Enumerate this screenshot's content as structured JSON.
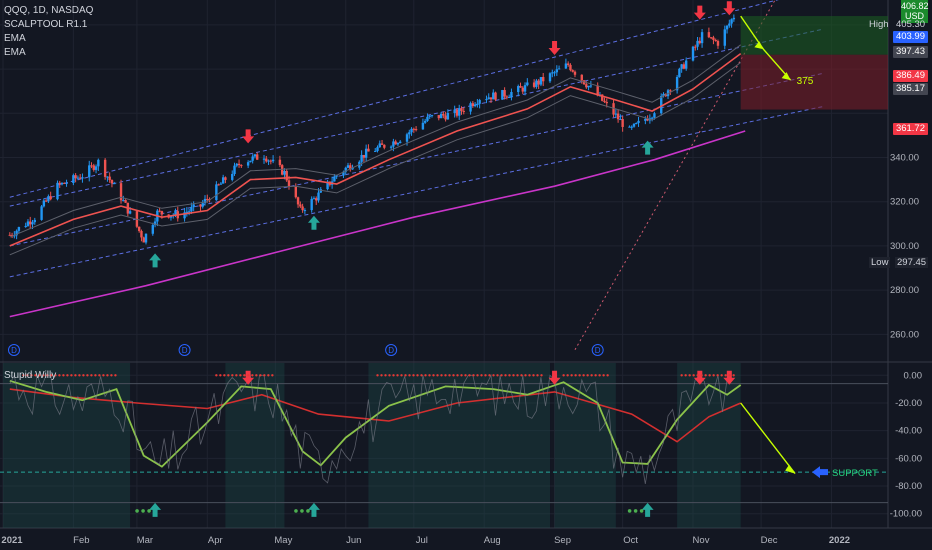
{
  "legend": {
    "symbol": "QQQ, 1D, NASDAQ",
    "indicator1": "SCALPTOOL R1.1",
    "indicator2": "EMA",
    "indicator3": "EMA",
    "oscillator": "Stupid Willy"
  },
  "price_axis": {
    "ticks": [
      "260.00",
      "280.00",
      "300.00",
      "320.00",
      "340.00"
    ],
    "currency": "USD",
    "top_value": "406.82",
    "high_label": "High",
    "high_value": "405.30",
    "low_label": "Low",
    "low_value": "297.45",
    "tags": [
      {
        "value": "403.99",
        "color": "#2962ff"
      },
      {
        "value": "397.43",
        "color": "#434651"
      },
      {
        "value": "386.49",
        "color": "#f23645"
      },
      {
        "value": "385.17",
        "color": "#434651"
      },
      {
        "value": "361.72",
        "color": "#f23645"
      }
    ]
  },
  "osc_axis": {
    "ticks": [
      "0.00",
      "-20.00",
      "-40.00",
      "-60.00",
      "-80.00",
      "-100.00"
    ]
  },
  "time_axis": {
    "labels": [
      "2021",
      "Feb",
      "Mar",
      "Apr",
      "May",
      "Jun",
      "Jul",
      "Aug",
      "Sep",
      "Oct",
      "Nov",
      "Dec",
      "2022"
    ]
  },
  "annotations": {
    "target_label": "375",
    "support_label": "SUPPORT",
    "dividend_marker": "D"
  },
  "colors": {
    "background": "#131722",
    "grid": "#1f2330",
    "up": "#2196f3",
    "down": "#ef5350",
    "ema_fast": "#ef5350",
    "ema_slow": "#c935c9",
    "arrow_up": "#26a69a",
    "arrow_down": "#f23645",
    "projection": "#c6ff00",
    "osc_fast": "#8bc34a",
    "osc_slow": "#d32f2f"
  },
  "chart_data": {
    "type": "candlestick",
    "title": "QQQ, 1D, NASDAQ",
    "price_ylim": [
      252,
      409
    ],
    "osc_ylim": [
      -106,
      6
    ],
    "price_path": [
      {
        "x": "2021-01-04",
        "y": 305
      },
      {
        "x": "2021-01-15",
        "y": 313
      },
      {
        "x": "2021-01-25",
        "y": 327
      },
      {
        "x": "2021-02-05",
        "y": 332
      },
      {
        "x": "2021-02-12",
        "y": 338
      },
      {
        "x": "2021-02-22",
        "y": 322
      },
      {
        "x": "2021-03-04",
        "y": 303
      },
      {
        "x": "2021-03-10",
        "y": 315
      },
      {
        "x": "2021-03-19",
        "y": 314
      },
      {
        "x": "2021-03-29",
        "y": 318
      },
      {
        "x": "2021-04-06",
        "y": 327
      },
      {
        "x": "2021-04-16",
        "y": 338
      },
      {
        "x": "2021-04-26",
        "y": 341
      },
      {
        "x": "2021-05-05",
        "y": 333
      },
      {
        "x": "2021-05-12",
        "y": 316
      },
      {
        "x": "2021-05-19",
        "y": 322
      },
      {
        "x": "2021-05-28",
        "y": 332
      },
      {
        "x": "2021-06-10",
        "y": 342
      },
      {
        "x": "2021-06-24",
        "y": 348
      },
      {
        "x": "2021-07-08",
        "y": 358
      },
      {
        "x": "2021-07-20",
        "y": 360
      },
      {
        "x": "2021-07-30",
        "y": 367
      },
      {
        "x": "2021-08-12",
        "y": 369
      },
      {
        "x": "2021-08-25",
        "y": 374
      },
      {
        "x": "2021-09-07",
        "y": 382
      },
      {
        "x": "2021-09-20",
        "y": 368
      },
      {
        "x": "2021-10-04",
        "y": 352
      },
      {
        "x": "2021-10-14",
        "y": 360
      },
      {
        "x": "2021-10-25",
        "y": 377
      },
      {
        "x": "2021-11-05",
        "y": 395
      },
      {
        "x": "2021-11-12",
        "y": 392
      },
      {
        "x": "2021-11-19",
        "y": 404
      }
    ],
    "ema_fast": [
      {
        "x": "2021-01-04",
        "y": 300
      },
      {
        "x": "2021-02-01",
        "y": 312
      },
      {
        "x": "2021-02-22",
        "y": 318
      },
      {
        "x": "2021-03-12",
        "y": 313
      },
      {
        "x": "2021-04-01",
        "y": 316
      },
      {
        "x": "2021-04-20",
        "y": 330
      },
      {
        "x": "2021-05-10",
        "y": 331
      },
      {
        "x": "2021-05-28",
        "y": 328
      },
      {
        "x": "2021-06-20",
        "y": 339
      },
      {
        "x": "2021-07-20",
        "y": 352
      },
      {
        "x": "2021-08-20",
        "y": 362
      },
      {
        "x": "2021-09-08",
        "y": 372
      },
      {
        "x": "2021-09-28",
        "y": 366
      },
      {
        "x": "2021-10-14",
        "y": 361
      },
      {
        "x": "2021-11-01",
        "y": 371
      },
      {
        "x": "2021-11-22",
        "y": 387
      }
    ],
    "ema_slow": [
      {
        "x": "2021-01-04",
        "y": 268
      },
      {
        "x": "2021-03-05",
        "y": 282
      },
      {
        "x": "2021-05-01",
        "y": 297
      },
      {
        "x": "2021-07-01",
        "y": 313
      },
      {
        "x": "2021-09-01",
        "y": 327
      },
      {
        "x": "2021-10-15",
        "y": 339
      },
      {
        "x": "2021-11-24",
        "y": 352
      }
    ],
    "projection": [
      {
        "x": "2021-11-22",
        "y": 404
      },
      {
        "x": "2021-12-02",
        "y": 389
      },
      {
        "x": "2021-12-14",
        "y": 375
      }
    ],
    "osc_fast": [
      {
        "x": "2021-01-04",
        "y": -4
      },
      {
        "x": "2021-01-20",
        "y": -12
      },
      {
        "x": "2021-02-05",
        "y": -18
      },
      {
        "x": "2021-02-20",
        "y": -10
      },
      {
        "x": "2021-03-04",
        "y": -58
      },
      {
        "x": "2021-03-12",
        "y": -66
      },
      {
        "x": "2021-03-22",
        "y": -50
      },
      {
        "x": "2021-04-01",
        "y": -34
      },
      {
        "x": "2021-04-16",
        "y": -8
      },
      {
        "x": "2021-04-29",
        "y": -10
      },
      {
        "x": "2021-05-13",
        "y": -55
      },
      {
        "x": "2021-05-21",
        "y": -65
      },
      {
        "x": "2021-06-01",
        "y": -45
      },
      {
        "x": "2021-06-20",
        "y": -22
      },
      {
        "x": "2021-07-15",
        "y": -8
      },
      {
        "x": "2021-08-05",
        "y": -10
      },
      {
        "x": "2021-08-20",
        "y": -14
      },
      {
        "x": "2021-09-05",
        "y": -5
      },
      {
        "x": "2021-09-20",
        "y": -20
      },
      {
        "x": "2021-10-01",
        "y": -63
      },
      {
        "x": "2021-10-12",
        "y": -64
      },
      {
        "x": "2021-10-25",
        "y": -32
      },
      {
        "x": "2021-11-08",
        "y": -7
      },
      {
        "x": "2021-11-16",
        "y": -14
      },
      {
        "x": "2021-11-22",
        "y": -7
      }
    ],
    "osc_slow": [
      {
        "x": "2021-01-04",
        "y": -10
      },
      {
        "x": "2021-02-01",
        "y": -16
      },
      {
        "x": "2021-03-01",
        "y": -20
      },
      {
        "x": "2021-04-01",
        "y": -24
      },
      {
        "x": "2021-04-25",
        "y": -14
      },
      {
        "x": "2021-05-20",
        "y": -28
      },
      {
        "x": "2021-06-20",
        "y": -33
      },
      {
        "x": "2021-07-20",
        "y": -20
      },
      {
        "x": "2021-09-01",
        "y": -12
      },
      {
        "x": "2021-10-05",
        "y": -28
      },
      {
        "x": "2021-10-25",
        "y": -48
      },
      {
        "x": "2021-11-08",
        "y": -30
      },
      {
        "x": "2021-11-22",
        "y": -20
      }
    ],
    "osc_projection": [
      {
        "x": "2021-11-22",
        "y": -20
      },
      {
        "x": "2021-12-16",
        "y": -71
      }
    ],
    "support_level": -70,
    "signals_up": [
      {
        "x": "2021-03-09",
        "y": 293
      },
      {
        "x": "2021-05-18",
        "y": 310
      },
      {
        "x": "2021-10-12",
        "y": 344
      }
    ],
    "signals_down": [
      {
        "x": "2021-04-19",
        "y": 350
      },
      {
        "x": "2021-09-01",
        "y": 390
      },
      {
        "x": "2021-11-04",
        "y": 406
      },
      {
        "x": "2021-11-17",
        "y": 408
      }
    ]
  }
}
